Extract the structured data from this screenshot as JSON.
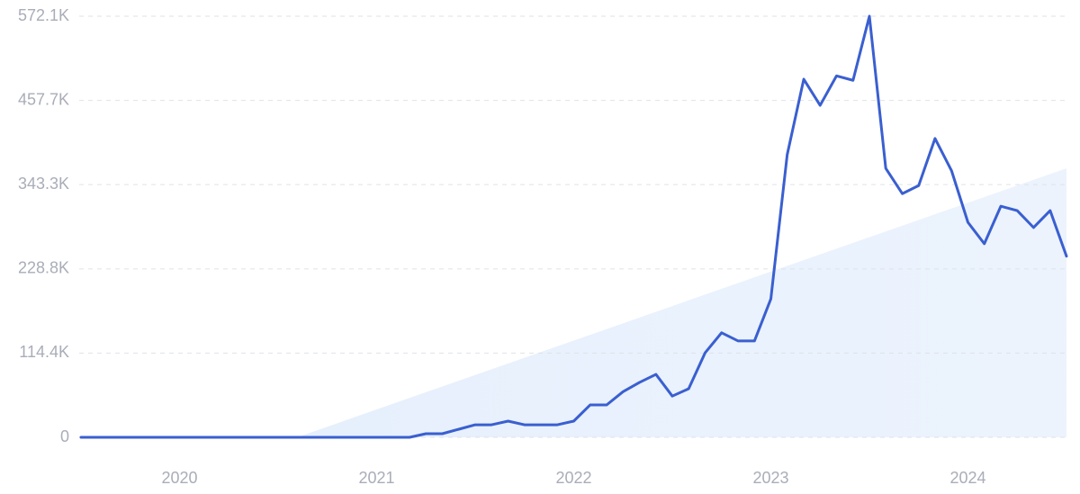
{
  "chart_data": {
    "type": "line",
    "x": [
      2019.5,
      2019.583,
      2019.667,
      2019.75,
      2019.833,
      2019.917,
      2020,
      2020.083,
      2020.167,
      2020.25,
      2020.333,
      2020.417,
      2020.5,
      2020.583,
      2020.667,
      2020.75,
      2020.833,
      2020.917,
      2021,
      2021.083,
      2021.167,
      2021.25,
      2021.333,
      2021.417,
      2021.5,
      2021.583,
      2021.667,
      2021.75,
      2021.833,
      2021.917,
      2022,
      2022.083,
      2022.167,
      2022.25,
      2022.333,
      2022.417,
      2022.5,
      2022.583,
      2022.667,
      2022.75,
      2022.833,
      2022.917,
      2023,
      2023.083,
      2023.167,
      2023.25,
      2023.333,
      2023.417,
      2023.5,
      2023.583,
      2023.667,
      2023.75,
      2023.833,
      2023.917,
      2024,
      2024.083,
      2024.167,
      2024.25,
      2024.333,
      2024.417,
      2024.5
    ],
    "series": [
      {
        "color": "#3a5fd0",
        "values": [
          0,
          0,
          0,
          0,
          0,
          0,
          0,
          0,
          0,
          0,
          0,
          0,
          0,
          0,
          0,
          0,
          0,
          0,
          0,
          0,
          0,
          4900,
          4900,
          11000,
          17000,
          17000,
          22000,
          17000,
          17000,
          17000,
          22000,
          44000,
          44000,
          62000,
          74500,
          85500,
          56000,
          66000,
          115000,
          142000,
          131000,
          131000,
          188000,
          384000,
          486500,
          451000,
          491000,
          485000,
          572100,
          365500,
          331000,
          342000,
          406000,
          362000,
          292000,
          263000,
          314000,
          308000,
          285000,
          308000,
          246000
        ]
      }
    ],
    "xlim": [
      2019.5,
      2024.5
    ],
    "xticks": [
      2020,
      2021,
      2022,
      2023,
      2024
    ],
    "ylim": [
      0,
      572100
    ],
    "yticks": [
      0,
      {
        "value": 114400,
        "label": "114.4K"
      },
      {
        "value": 228800,
        "label": "228.8K"
      },
      {
        "value": 343300,
        "label": "343.3K"
      },
      {
        "value": 457700,
        "label": "457.7K"
      },
      {
        "value": 572100,
        "label": "572.1K"
      }
    ],
    "grid": true
  }
}
